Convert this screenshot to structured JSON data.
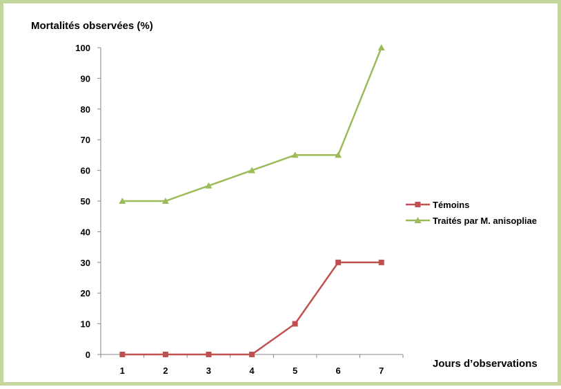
{
  "chart_data": {
    "type": "line",
    "title": "",
    "ylabel": "Mortalités observées (%)",
    "xlabel": "Jours d’observations",
    "ylim": [
      0,
      100
    ],
    "yticks": [
      0,
      10,
      20,
      30,
      40,
      50,
      60,
      70,
      80,
      90,
      100
    ],
    "categories": [
      "1",
      "2",
      "3",
      "4",
      "5",
      "6",
      "7"
    ],
    "grid": false,
    "legend_position": "right",
    "series": [
      {
        "name": "Témoins",
        "values": [
          0,
          0,
          0,
          0,
          10,
          30,
          30
        ],
        "color": "#c0504d",
        "marker": "square"
      },
      {
        "name": "Traités par M. anisopliae",
        "values": [
          50,
          50,
          55,
          60,
          65,
          65,
          100
        ],
        "color": "#9bbb59",
        "marker": "triangle"
      }
    ]
  },
  "colors": {
    "border": "#c3d69b",
    "axis": "#868686"
  }
}
